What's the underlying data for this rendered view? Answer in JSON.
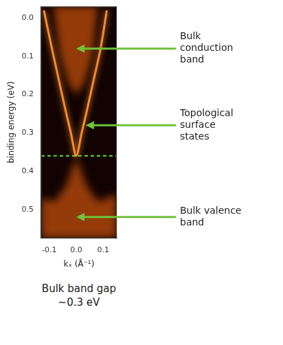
{
  "chart_data": {
    "type": "line",
    "x_label": "kₓ (Å⁻¹)",
    "y_label": "binding energy (eV)",
    "xlim": [
      -0.13,
      0.15
    ],
    "xticks": [
      -0.1,
      {
        "value": 0,
        "label": "0.0"
      },
      0.1
    ],
    "ylim": [
      -0.03,
      0.575
    ],
    "yticks": [
      {
        "value": 0,
        "label": "0.0"
      },
      0.1,
      0.2,
      0.3,
      0.4,
      0.5
    ],
    "grid": false,
    "series": [
      {
        "name": "Bulk conduction band",
        "type": "area",
        "color": "#ff6a10",
        "x": [
          -0.085,
          -0.06,
          -0.03,
          0,
          0.03,
          0.06,
          0.08
        ],
        "values": [
          -0.03,
          0.1,
          0.17,
          0.2,
          0.17,
          0.1,
          -0.03
        ]
      },
      {
        "name": "Bulk valence band",
        "type": "area",
        "color": "#ff6a10",
        "x": [
          -0.13,
          -0.13,
          -0.08,
          -0.04,
          -0.008,
          0,
          0.008,
          0.04,
          0.08,
          0.15,
          0.15
        ],
        "values": [
          0.575,
          0.47,
          0.48,
          0.44,
          0.38,
          0.365,
          0.38,
          0.44,
          0.48,
          0.46,
          0.575
        ]
      },
      {
        "name": "Topological surface states",
        "type": "line",
        "color": "#ff8a2a",
        "x": [
          -0.12,
          -0.09,
          -0.065,
          -0.04,
          -0.02,
          0,
          0.02,
          0.04,
          0.065,
          0.09,
          0.113
        ],
        "values": [
          -0.02,
          0.08,
          0.16,
          0.24,
          0.3,
          0.36,
          0.3,
          0.24,
          0.16,
          0.08,
          -0.02
        ]
      }
    ],
    "reference_lines": [
      {
        "y": 0.36,
        "color": "#6fd93a",
        "line_style": "dashed"
      }
    ],
    "annotations": [
      {
        "text": "Bulk conduction band",
        "x": 0,
        "y": 0.08
      },
      {
        "text": "Topological surface states",
        "x": 0.035,
        "y": 0.28
      },
      {
        "text": "Bulk valence band",
        "x": 0,
        "y": 0.52
      }
    ],
    "caption": [
      "Bulk band gap",
      "~0.3 eV"
    ]
  }
}
